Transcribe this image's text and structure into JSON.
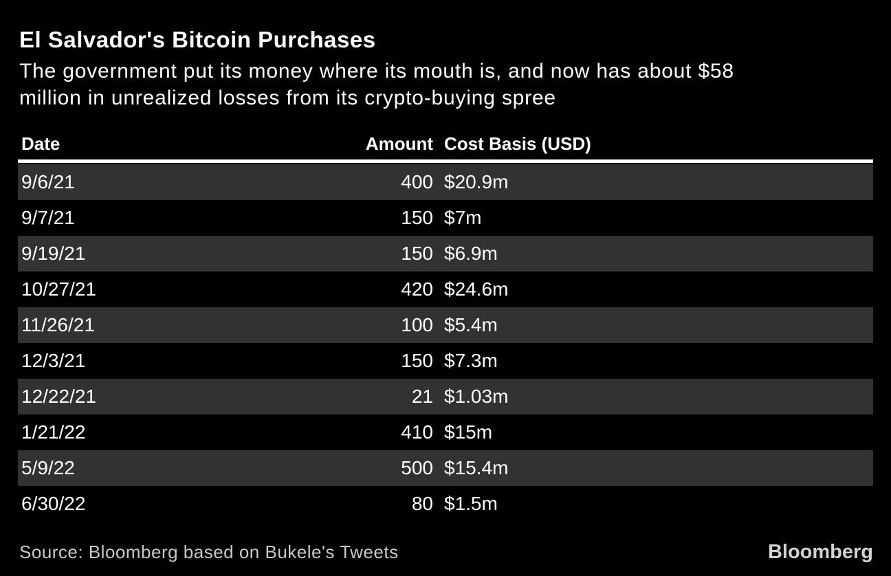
{
  "chart_data": {
    "type": "table",
    "title": "El Salvador's Bitcoin Purchases",
    "subtitle": "The government put its money where its mouth is, and now has about $58 million in unrealized losses from its crypto-buying spree",
    "columns": [
      "Date",
      "Amount",
      "Cost Basis (USD)"
    ],
    "rows": [
      [
        "9/6/21",
        400,
        "$20.9m"
      ],
      [
        "9/7/21",
        150,
        "$7m"
      ],
      [
        "9/19/21",
        150,
        "$6.9m"
      ],
      [
        "10/27/21",
        420,
        "$24.6m"
      ],
      [
        "11/26/21",
        100,
        "$5.4m"
      ],
      [
        "12/3/21",
        150,
        "$7.3m"
      ],
      [
        "12/22/21",
        21,
        "$1.03m"
      ],
      [
        "1/21/22",
        410,
        "$15m"
      ],
      [
        "5/9/22",
        500,
        "$15.4m"
      ],
      [
        "6/30/22",
        80,
        "$1.5m"
      ]
    ],
    "source": "Source: Bloomberg based on Bukele's Tweets",
    "legend": "none",
    "grid": "off"
  },
  "header": {
    "subtitle_lines": [
      "The government put its money where its mouth is, and now has about $58",
      "million in unrealized losses from its crypto-buying spree"
    ]
  },
  "footer": {
    "logo": "Bloomberg"
  },
  "colors": {
    "background": "#000000",
    "row_base": "#000000",
    "row_alt": "#323232",
    "text": "#ffffff",
    "divider": "#ffffff",
    "source_text": "#c9c9c9",
    "logo_text": "#d2d2d2"
  }
}
